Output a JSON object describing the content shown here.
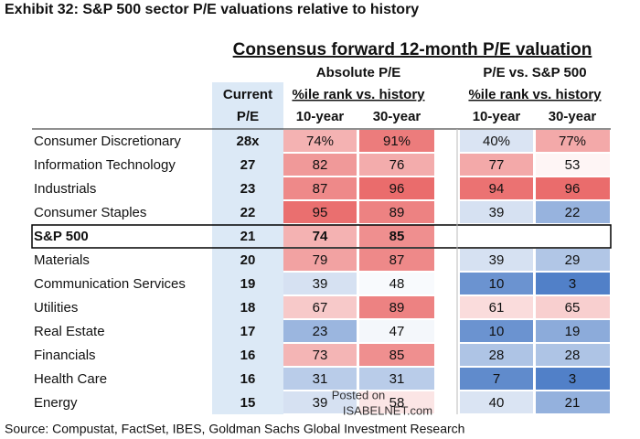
{
  "header": {
    "title": "Exhibit 32: S&P 500 sector P/E valuations relative to history",
    "subtitle": "Consensus forward 12-month P/E valuation"
  },
  "groups": [
    "Absolute P/E",
    "P/E vs. S&P 500"
  ],
  "group_subheaders": [
    "%ile rank vs. history",
    "%ile rank vs. history"
  ],
  "current_header": [
    "Current",
    "P/E"
  ],
  "columns": [
    "10-year",
    "30-year",
    "10-year",
    "30-year"
  ],
  "highlight_row": 4,
  "table": {
    "rows": [
      [
        "Consumer Discretionary",
        "28x",
        "74%",
        "91%",
        "40%",
        "77%"
      ],
      [
        "Information Technology",
        "27",
        "82",
        "76",
        "77",
        "53"
      ],
      [
        "Industrials",
        "23",
        "87",
        "96",
        "94",
        "96"
      ],
      [
        "Consumer Staples",
        "22",
        "95",
        "89",
        "39",
        "22"
      ],
      [
        "S&P 500",
        "21",
        "74",
        "85",
        null,
        null
      ],
      [
        "Materials",
        "20",
        "79",
        "87",
        "39",
        "29"
      ],
      [
        "Communication Services",
        "19",
        "39",
        "48",
        "10",
        "3"
      ],
      [
        "Utilities",
        "18",
        "67",
        "89",
        "61",
        "65"
      ],
      [
        "Real Estate",
        "17",
        "23",
        "47",
        "10",
        "19"
      ],
      [
        "Financials",
        "16",
        "73",
        "85",
        "28",
        "28"
      ],
      [
        "Health Care",
        "16",
        "31",
        "31",
        "7",
        "3"
      ],
      [
        "Energy",
        "15",
        "39",
        "58",
        "40",
        "21"
      ]
    ]
  },
  "watermark": [
    "Posted on",
    "ISABELNET.com"
  ],
  "source": "Source: Compustat, FactSet, IBES, Goldman Sachs Global Investment Research"
}
